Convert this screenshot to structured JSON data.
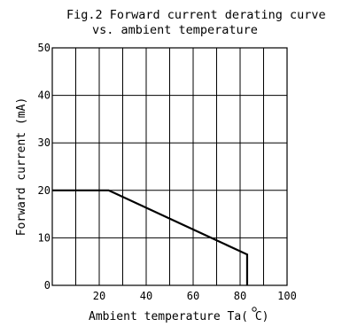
{
  "chart_data": {
    "type": "line",
    "title_line1": "Fig.2 Forward current derating curve",
    "title_line2": "vs. ambient temperature",
    "xlabel": "Ambient temperature Ta(  C)",
    "ylabel": "Forward current (mA)",
    "xlim": [
      0,
      100
    ],
    "ylim": [
      0,
      50
    ],
    "x_ticks": [
      20,
      40,
      60,
      80,
      100
    ],
    "x_tick_labels": [
      "20",
      "40",
      "60",
      "80",
      "100"
    ],
    "y_ticks": [
      0,
      10,
      20,
      30,
      40,
      50
    ],
    "y_tick_labels": [
      "0",
      "10",
      "20",
      "30",
      "40",
      "50"
    ],
    "grid": true,
    "series": [
      {
        "x": [
          0,
          24,
          83,
          83
        ],
        "y": [
          20,
          20,
          6.5,
          0
        ]
      }
    ]
  }
}
